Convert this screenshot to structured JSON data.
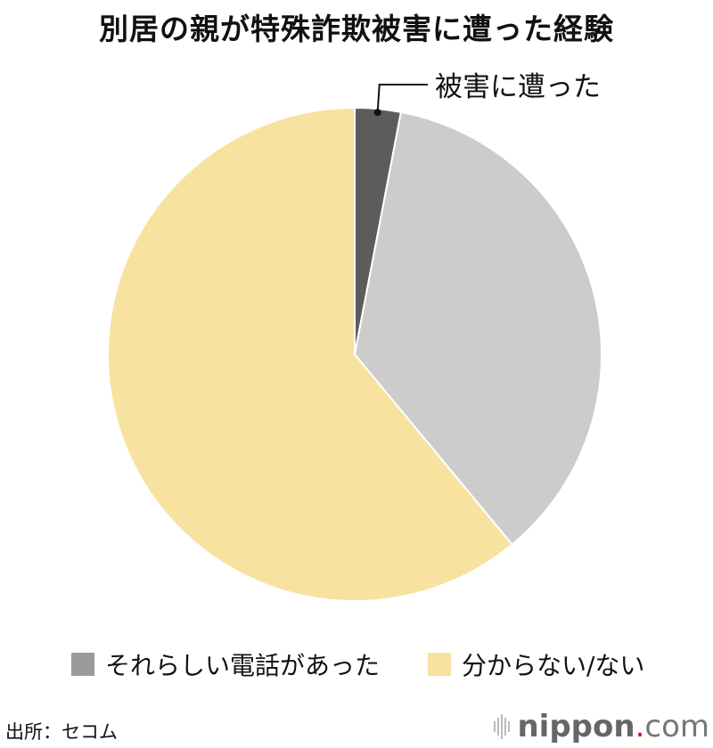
{
  "chart_data": {
    "type": "pie",
    "title": "別居の親が特殊詐欺被害に遭った経験",
    "slices": [
      {
        "label": "被害に遭った",
        "value": 3,
        "color": "#5c5c5c"
      },
      {
        "label": "それらしい電話があった",
        "value": 36,
        "color": "#cccccc",
        "legend_color": "#9b9b9b"
      },
      {
        "label": "分からない/ない",
        "value": 61,
        "color": "#f8e2a0"
      }
    ],
    "start_angle": "12 o'clock, clockwise",
    "legend_placement": "bottom"
  },
  "source": "出所：セコム",
  "logo": {
    "name": "nippon",
    "dot": ".",
    "suffix": "com"
  }
}
